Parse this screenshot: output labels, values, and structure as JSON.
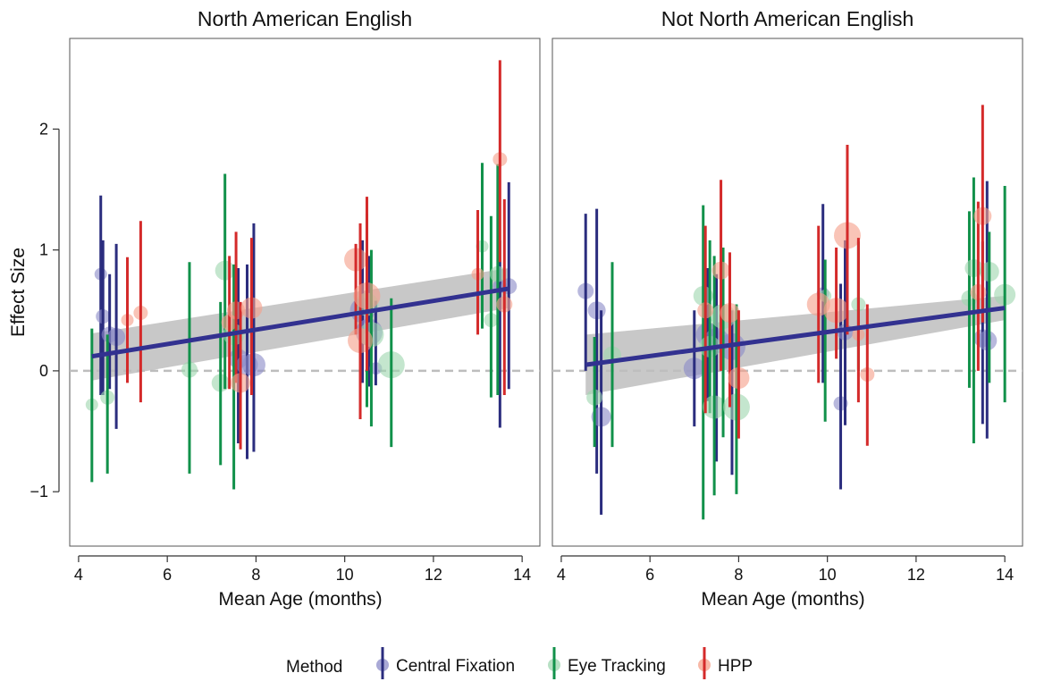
{
  "figure": {
    "y_axis_title": "Effect Size",
    "legend": {
      "title": "Method",
      "placement": "bottom",
      "entries": [
        {
          "name": "Central Fixation",
          "color": "#2b2d7e",
          "fill": "#8c8cc8"
        },
        {
          "name": "Eye Tracking",
          "color": "#11914a",
          "fill": "#9fd6b0"
        },
        {
          "name": "HPP",
          "color": "#d42a2a",
          "fill": "#f6a08a"
        }
      ]
    },
    "colors": {
      "trend_line": "#323190",
      "confidence_band": "#bebebe",
      "zero_line": "#bdbdbd",
      "frame": "#555555"
    }
  },
  "chart_data": [
    {
      "type": "scatter",
      "title": "North American English",
      "xlabel": "Mean Age (months)",
      "ylabel": "Effect Size",
      "xlim": [
        3.8,
        14.4
      ],
      "ylim": [
        -1.45,
        2.75
      ],
      "xticks": [
        "4",
        "6",
        "8",
        "10",
        "12",
        "14"
      ],
      "yticks": [
        "−1",
        "0",
        "1",
        "2"
      ],
      "grid": false,
      "reference_line": {
        "y": 0,
        "style": "dashed"
      },
      "trend": {
        "x": [
          4.3,
          13.7
        ],
        "y": [
          0.12,
          0.68
        ],
        "band_lower": [
          -0.08,
          0.52
        ],
        "band_upper": [
          0.31,
          0.85
        ]
      },
      "series": [
        {
          "name": "Central Fixation",
          "points": [
            {
              "x": 4.5,
              "y": 0.8,
              "lo": -0.2,
              "hi": 1.45
            },
            {
              "x": 4.55,
              "y": 0.45,
              "lo": -0.2,
              "hi": 1.08
            },
            {
              "x": 4.7,
              "y": 0.3,
              "lo": -0.15,
              "hi": 0.8
            },
            {
              "x": 4.85,
              "y": 0.28,
              "lo": -0.48,
              "hi": 1.05
            },
            {
              "x": 7.6,
              "y": 0.1,
              "lo": -0.6,
              "hi": 0.85
            },
            {
              "x": 7.8,
              "y": 0.05,
              "lo": -0.73,
              "hi": 0.88
            },
            {
              "x": 7.95,
              "y": 0.05,
              "lo": -0.67,
              "hi": 1.22
            },
            {
              "x": 10.4,
              "y": 0.5,
              "lo": -0.1,
              "hi": 1.08
            },
            {
              "x": 10.55,
              "y": 0.32,
              "lo": -0.13,
              "hi": 0.95
            },
            {
              "x": 10.7,
              "y": 0.02,
              "lo": -0.12,
              "hi": 0.58
            },
            {
              "x": 13.5,
              "y": 0.7,
              "lo": -0.47,
              "hi": 1.08
            },
            {
              "x": 13.7,
              "y": 0.7,
              "lo": -0.15,
              "hi": 1.56
            }
          ]
        },
        {
          "name": "Eye Tracking",
          "points": [
            {
              "x": 4.3,
              "y": -0.28,
              "lo": -0.92,
              "hi": 0.35
            },
            {
              "x": 4.65,
              "y": -0.22,
              "lo": -0.85,
              "hi": 0.3
            },
            {
              "x": 6.5,
              "y": 0.01,
              "lo": -0.85,
              "hi": 0.9
            },
            {
              "x": 7.2,
              "y": -0.1,
              "lo": -0.78,
              "hi": 0.57
            },
            {
              "x": 7.3,
              "y": 0.83,
              "lo": -0.15,
              "hi": 1.63
            },
            {
              "x": 7.5,
              "y": 0.3,
              "lo": -0.98,
              "hi": 0.88
            },
            {
              "x": 10.5,
              "y": 0.55,
              "lo": -0.3,
              "hi": 1.3
            },
            {
              "x": 10.6,
              "y": 0.3,
              "lo": -0.46,
              "hi": 1.0
            },
            {
              "x": 11.05,
              "y": 0.05,
              "lo": -0.63,
              "hi": 0.6
            },
            {
              "x": 13.1,
              "y": 1.03,
              "lo": 0.35,
              "hi": 1.72
            },
            {
              "x": 13.3,
              "y": 0.42,
              "lo": -0.22,
              "hi": 1.28
            },
            {
              "x": 13.45,
              "y": 0.8,
              "lo": -0.2,
              "hi": 1.71
            }
          ]
        },
        {
          "name": "HPP",
          "points": [
            {
              "x": 5.1,
              "y": 0.42,
              "lo": -0.1,
              "hi": 0.94
            },
            {
              "x": 5.4,
              "y": 0.48,
              "lo": -0.26,
              "hi": 1.24
            },
            {
              "x": 7.4,
              "y": 0.4,
              "lo": -0.15,
              "hi": 0.95
            },
            {
              "x": 7.55,
              "y": 0.5,
              "lo": -0.1,
              "hi": 1.15
            },
            {
              "x": 7.65,
              "y": -0.1,
              "lo": -0.65,
              "hi": 0.57
            },
            {
              "x": 7.9,
              "y": 0.52,
              "lo": -0.2,
              "hi": 1.1
            },
            {
              "x": 10.25,
              "y": 0.92,
              "lo": 0.3,
              "hi": 1.05
            },
            {
              "x": 10.35,
              "y": 0.25,
              "lo": -0.4,
              "hi": 1.22
            },
            {
              "x": 10.5,
              "y": 0.62,
              "lo": 0.0,
              "hi": 1.44
            },
            {
              "x": 13.0,
              "y": 0.8,
              "lo": 0.3,
              "hi": 1.33
            },
            {
              "x": 13.5,
              "y": 1.75,
              "lo": 0.9,
              "hi": 2.57
            },
            {
              "x": 13.6,
              "y": 0.55,
              "lo": -0.2,
              "hi": 1.42
            }
          ]
        }
      ]
    },
    {
      "type": "scatter",
      "title": "Not North American English",
      "xlabel": "Mean Age (months)",
      "ylabel": "",
      "xlim": [
        3.8,
        14.4
      ],
      "ylim": [
        -1.45,
        2.75
      ],
      "xticks": [
        "4",
        "6",
        "8",
        "10",
        "12",
        "14"
      ],
      "yticks": [],
      "grid": false,
      "reference_line": {
        "y": 0,
        "style": "dashed"
      },
      "trend": {
        "x": [
          4.55,
          14.0
        ],
        "y": [
          0.05,
          0.52
        ],
        "band_lower": [
          -0.2,
          0.42
        ],
        "band_upper": [
          0.3,
          0.62
        ]
      },
      "series": [
        {
          "name": "Central Fixation",
          "points": [
            {
              "x": 4.55,
              "y": 0.66,
              "lo": 0.0,
              "hi": 1.3
            },
            {
              "x": 4.8,
              "y": 0.5,
              "lo": -0.85,
              "hi": 1.34
            },
            {
              "x": 4.9,
              "y": -0.38,
              "lo": -1.19,
              "hi": 0.5
            },
            {
              "x": 7.0,
              "y": 0.02,
              "lo": -0.46,
              "hi": 0.5
            },
            {
              "x": 7.3,
              "y": 0.3,
              "lo": -0.25,
              "hi": 0.85
            },
            {
              "x": 7.5,
              "y": 0.25,
              "lo": -0.75,
              "hi": 0.8
            },
            {
              "x": 7.85,
              "y": 0.2,
              "lo": -0.86,
              "hi": 0.5
            },
            {
              "x": 9.9,
              "y": 0.64,
              "lo": -0.1,
              "hi": 1.38
            },
            {
              "x": 10.3,
              "y": -0.27,
              "lo": -0.98,
              "hi": 0.72
            },
            {
              "x": 10.4,
              "y": 0.32,
              "lo": -0.45,
              "hi": 1.08
            },
            {
              "x": 13.5,
              "y": 0.27,
              "lo": -0.44,
              "hi": 1.07
            },
            {
              "x": 13.6,
              "y": 0.25,
              "lo": -0.56,
              "hi": 1.57
            }
          ]
        },
        {
          "name": "Eye Tracking",
          "points": [
            {
              "x": 4.75,
              "y": -0.22,
              "lo": -0.63,
              "hi": 0.28
            },
            {
              "x": 5.15,
              "y": 0.13,
              "lo": -0.63,
              "hi": 0.9
            },
            {
              "x": 7.2,
              "y": 0.62,
              "lo": -1.23,
              "hi": 1.37
            },
            {
              "x": 7.35,
              "y": 0.2,
              "lo": -0.35,
              "hi": 1.08
            },
            {
              "x": 7.45,
              "y": -0.3,
              "lo": -1.03,
              "hi": 0.95
            },
            {
              "x": 7.65,
              "y": 0.45,
              "lo": -0.55,
              "hi": 1.02
            },
            {
              "x": 7.95,
              "y": -0.3,
              "lo": -1.02,
              "hi": 0.55
            },
            {
              "x": 9.95,
              "y": 0.62,
              "lo": -0.42,
              "hi": 0.92
            },
            {
              "x": 10.7,
              "y": 0.55,
              "lo": 0.0,
              "hi": 1.07
            },
            {
              "x": 13.2,
              "y": 0.6,
              "lo": -0.14,
              "hi": 1.32
            },
            {
              "x": 13.3,
              "y": 0.85,
              "lo": -0.6,
              "hi": 1.6
            },
            {
              "x": 13.65,
              "y": 0.82,
              "lo": -0.1,
              "hi": 1.15
            },
            {
              "x": 14.0,
              "y": 0.63,
              "lo": -0.26,
              "hi": 1.53
            }
          ]
        },
        {
          "name": "HPP",
          "points": [
            {
              "x": 7.25,
              "y": 0.5,
              "lo": -0.35,
              "hi": 1.2
            },
            {
              "x": 7.6,
              "y": 0.83,
              "lo": 0.0,
              "hi": 1.58
            },
            {
              "x": 7.8,
              "y": 0.48,
              "lo": -0.3,
              "hi": 0.98
            },
            {
              "x": 8.0,
              "y": -0.06,
              "lo": -0.56,
              "hi": 0.5
            },
            {
              "x": 9.8,
              "y": 0.55,
              "lo": -0.1,
              "hi": 1.2
            },
            {
              "x": 10.2,
              "y": 0.5,
              "lo": 0.1,
              "hi": 1.02
            },
            {
              "x": 10.45,
              "y": 1.12,
              "lo": 0.3,
              "hi": 1.87
            },
            {
              "x": 10.7,
              "y": 0.3,
              "lo": -0.26,
              "hi": 1.1
            },
            {
              "x": 10.9,
              "y": -0.03,
              "lo": -0.62,
              "hi": 0.55
            },
            {
              "x": 13.4,
              "y": 0.65,
              "lo": 0.0,
              "hi": 1.4
            },
            {
              "x": 13.5,
              "y": 1.28,
              "lo": 0.4,
              "hi": 2.2
            }
          ]
        }
      ]
    }
  ]
}
